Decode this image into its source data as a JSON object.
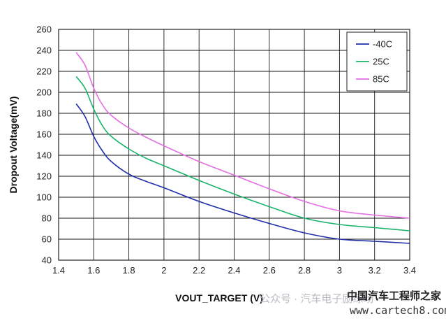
{
  "chart_data": {
    "type": "line",
    "xlabel": "VOUT_TARGET (V)",
    "ylabel": "Dropout Voltage(mV)",
    "xlim": [
      1.4,
      3.4
    ],
    "ylim": [
      40,
      260
    ],
    "x_ticks": [
      "1.4",
      "1.6",
      "1.8",
      "2",
      "2.2",
      "2.4",
      "2.6",
      "2.8",
      "3",
      "3.2",
      "3.4"
    ],
    "y_ticks": [
      "40",
      "60",
      "80",
      "100",
      "120",
      "140",
      "160",
      "180",
      "200",
      "220",
      "240",
      "260"
    ],
    "grid": true,
    "legend_position": "top-right",
    "series": [
      {
        "name": "-40C",
        "color": "#1f2fa8",
        "x": [
          1.5,
          1.55,
          1.6,
          1.65,
          1.7,
          1.8,
          1.9,
          2.0,
          2.2,
          2.4,
          2.6,
          2.8,
          3.0,
          3.2,
          3.4
        ],
        "y": [
          189,
          177,
          158,
          144,
          134,
          122,
          115,
          109,
          96,
          85,
          75,
          66,
          60,
          58,
          56
        ]
      },
      {
        "name": "25C",
        "color": "#19b36a",
        "x": [
          1.5,
          1.55,
          1.6,
          1.65,
          1.7,
          1.8,
          1.9,
          2.0,
          2.2,
          2.4,
          2.6,
          2.8,
          3.0,
          3.2,
          3.4
        ],
        "y": [
          215,
          204,
          184,
          168,
          158,
          146,
          137,
          130,
          116,
          103,
          91,
          80,
          74,
          71,
          68
        ]
      },
      {
        "name": "85C",
        "color": "#e46ee2",
        "x": [
          1.5,
          1.55,
          1.6,
          1.65,
          1.7,
          1.8,
          1.9,
          2.0,
          2.2,
          2.4,
          2.6,
          2.8,
          3.0,
          3.2,
          3.4
        ],
        "y": [
          238,
          226,
          204,
          188,
          178,
          166,
          157,
          149,
          134,
          121,
          108,
          96,
          87,
          83,
          80
        ]
      }
    ]
  },
  "watermark": {
    "wechat": "公众号 · 汽车电子励练场",
    "brand": "中国汽车工程师之家",
    "site": "www.cartech8.com"
  }
}
